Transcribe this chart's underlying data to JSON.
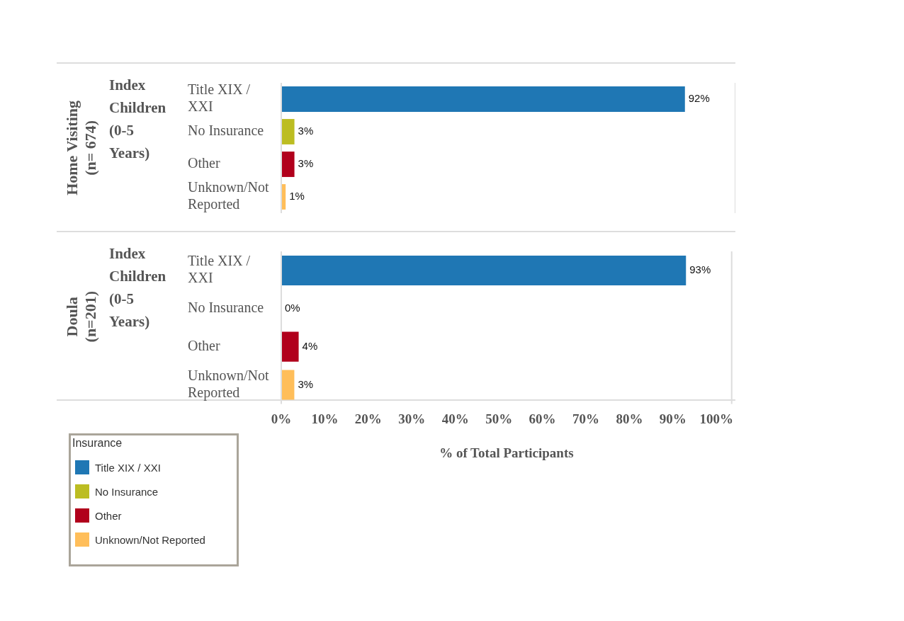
{
  "chart_data": [
    {
      "type": "bar",
      "orientation": "horizontal",
      "stacked": true,
      "ylabel": "Home Visiting\n(n= 674)",
      "subtitle": "Index Children (0-5 Years)",
      "categories": [
        "Title XIX / XXI",
        "No Insurance",
        "Other",
        "Unknown/Not Reported"
      ],
      "series": [
        {
          "name": "Title XIX / XXI",
          "color": "#1f77b4",
          "values": [
            92,
            null,
            null,
            null
          ],
          "value_labels": [
            "92%",
            null,
            null,
            null
          ]
        },
        {
          "name": "No Insurance",
          "color": "#bcbd22",
          "values": [
            null,
            3,
            null,
            null
          ],
          "value_labels": [
            null,
            "3%",
            null,
            null
          ]
        },
        {
          "name": "Other",
          "color": "#b1001c",
          "values": [
            null,
            null,
            3,
            null
          ],
          "value_labels": [
            null,
            null,
            "3%",
            null
          ]
        },
        {
          "name": "Unknown/Not Reported",
          "color": "#ffbe5a",
          "values": [
            null,
            null,
            null,
            1
          ],
          "value_labels": [
            null,
            null,
            null,
            "1%"
          ]
        }
      ],
      "xlim": [
        0,
        103.5
      ],
      "tick_labels": "y",
      "legend": "bottom left",
      "legend_title": "Insurance"
    },
    {
      "type": "bar",
      "orientation": "horizontal",
      "stacked": true,
      "ylabel": "Doula\n(n=201)",
      "subtitle": "Index Children (0-5 Years)",
      "categories": [
        "Title XIX / XXI",
        "No Insurance",
        "Other",
        "Unknown/Not Reported"
      ],
      "series": [
        {
          "color": "#1f77b4",
          "values": [
            93,
            null,
            null,
            null
          ],
          "value_labels": [
            "93%",
            null,
            null,
            null
          ]
        },
        {
          "color": "#bcbd22",
          "values": [
            null,
            0,
            null,
            null
          ],
          "value_labels": [
            null,
            "0%",
            null,
            null
          ]
        },
        {
          "color": "#b1001c",
          "values": [
            null,
            null,
            4,
            null
          ],
          "value_labels": [
            null,
            null,
            "4%",
            null
          ]
        },
        {
          "color": "#ffbe5a",
          "values": [
            null,
            null,
            null,
            3
          ],
          "value_labels": [
            null,
            null,
            null,
            "3%"
          ]
        }
      ],
      "xlim": [
        0,
        103.5
      ],
      "xticks": [
        {
          "value": 0,
          "label": "0%"
        },
        {
          "value": 10,
          "label": "10%"
        },
        {
          "value": 20,
          "label": "20%"
        },
        {
          "value": 30,
          "label": "30%"
        },
        {
          "value": 40,
          "label": "40%"
        },
        {
          "value": 50,
          "label": "50%"
        },
        {
          "value": 60,
          "label": "60%"
        },
        {
          "value": 70,
          "label": "70%"
        },
        {
          "value": 80,
          "label": "80%"
        },
        {
          "value": 90,
          "label": "90%"
        },
        {
          "value": 100,
          "label": "100%"
        }
      ],
      "xlabel": "% of Total Participants"
    }
  ]
}
